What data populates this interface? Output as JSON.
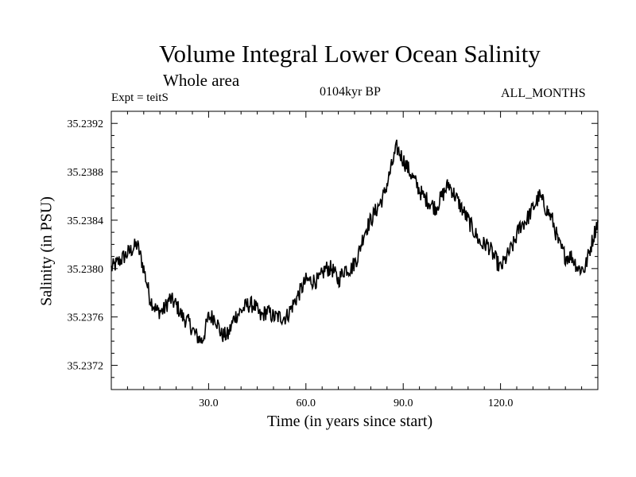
{
  "chart_data": {
    "type": "line",
    "title": "Volume Integral Lower Ocean Salinity",
    "subtitle": "Whole area",
    "experiment": "Expt = teitS",
    "period": "0104kyr BP",
    "months": "ALL_MONTHS",
    "xlabel": "Time (in years since start)",
    "ylabel": "Salinity (in PSU)",
    "xlim": [
      0,
      150
    ],
    "ylim": [
      35.237,
      35.2393
    ],
    "xticks": [
      30,
      60,
      90,
      120
    ],
    "xtick_labels": [
      "30.0",
      "60.0",
      "90.0",
      "120.0"
    ],
    "yticks": [
      35.2372,
      35.2376,
      35.238,
      35.2384,
      35.2388,
      35.2392
    ],
    "ytick_labels": [
      "35.2372",
      "35.2376",
      "35.2380",
      "35.2384",
      "35.2388",
      "35.2392"
    ],
    "grid": false,
    "series": [
      {
        "name": "Salinity",
        "x": [
          0,
          2,
          4,
          6,
          8,
          10,
          12,
          14,
          16,
          18,
          20,
          22,
          24,
          26,
          28,
          30,
          32,
          34,
          36,
          38,
          40,
          42,
          44,
          46,
          48,
          50,
          52,
          54,
          56,
          58,
          60,
          62,
          64,
          66,
          68,
          70,
          72,
          74,
          76,
          78,
          80,
          82,
          84,
          86,
          88,
          90,
          92,
          94,
          96,
          98,
          100,
          102,
          104,
          106,
          108,
          110,
          112,
          114,
          116,
          118,
          120,
          122,
          124,
          126,
          128,
          130,
          132,
          134,
          136,
          138,
          140,
          142,
          144,
          146,
          148,
          150
        ],
        "values": [
          35.238,
          35.23805,
          35.2381,
          35.23815,
          35.2382,
          35.238,
          35.23775,
          35.23765,
          35.23765,
          35.23775,
          35.2377,
          35.2376,
          35.23755,
          35.23745,
          35.2374,
          35.2376,
          35.2376,
          35.23745,
          35.23745,
          35.2376,
          35.23765,
          35.2377,
          35.2377,
          35.2376,
          35.23765,
          35.2376,
          35.2376,
          35.2376,
          35.2377,
          35.2378,
          35.2379,
          35.2379,
          35.2379,
          35.238,
          35.238,
          35.2379,
          35.238,
          35.238,
          35.2381,
          35.2383,
          35.2384,
          35.2385,
          35.2386,
          35.2388,
          35.239,
          35.2389,
          35.2388,
          35.2387,
          35.2386,
          35.23855,
          35.2385,
          35.2386,
          35.2387,
          35.2386,
          35.2385,
          35.2384,
          35.2383,
          35.2382,
          35.2382,
          35.2381,
          35.238,
          35.2381,
          35.2382,
          35.23835,
          35.2384,
          35.2385,
          35.2386,
          35.2385,
          35.2384,
          35.2382,
          35.2381,
          35.2381,
          35.238,
          35.238,
          35.2382,
          35.2384
        ]
      }
    ]
  }
}
